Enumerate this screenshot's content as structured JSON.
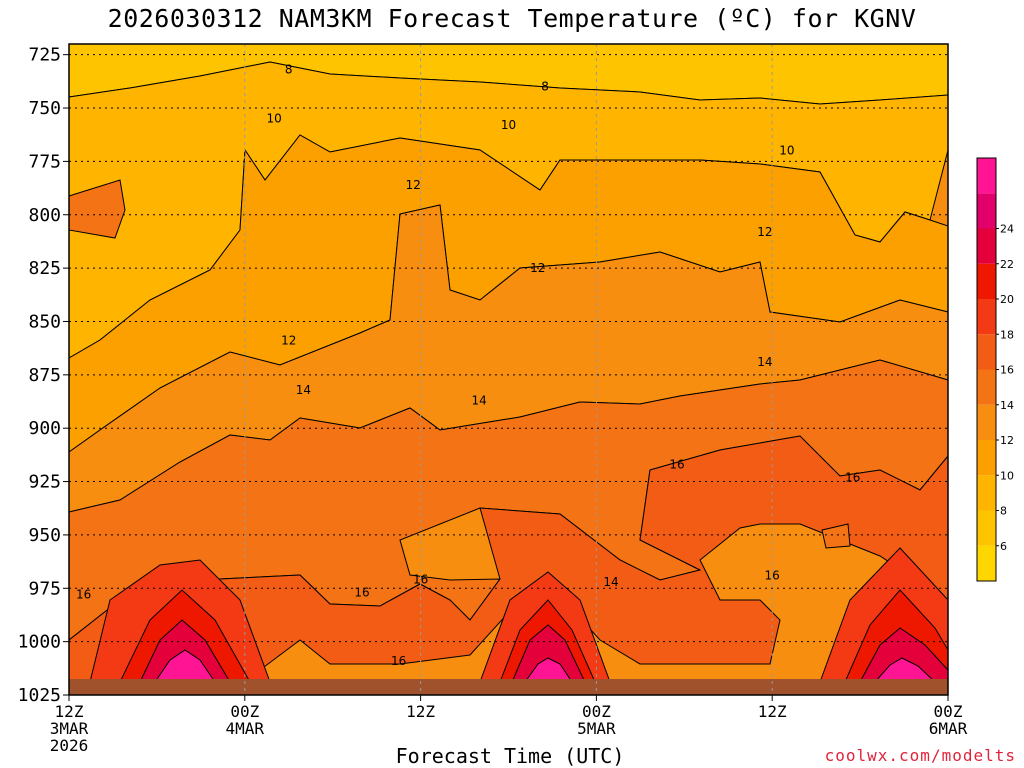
{
  "title": "2026030312 NAM3KM Forecast Temperature (ºC) for KGNV",
  "credit": "coolwx.com/modelts",
  "chart_data": {
    "type": "heatmap",
    "title": "2026030312 NAM3KM Forecast Temperature (ºC) for KGNV",
    "xlabel": "Forecast Time (UTC)",
    "ylabel": "",
    "y_axis": {
      "ticks": [
        725,
        750,
        775,
        800,
        825,
        850,
        875,
        900,
        925,
        950,
        975,
        1000,
        1025
      ],
      "inverted": true,
      "range": [
        720,
        1025
      ]
    },
    "x_axis": {
      "range_hours": [
        0,
        60
      ],
      "ticks": [
        {
          "h": 0,
          "lines": [
            "12Z",
            "3MAR",
            "2026"
          ]
        },
        {
          "h": 12,
          "lines": [
            "00Z",
            "4MAR"
          ]
        },
        {
          "h": 24,
          "lines": [
            "12Z"
          ]
        },
        {
          "h": 36,
          "lines": [
            "00Z",
            "5MAR"
          ]
        },
        {
          "h": 48,
          "lines": [
            "12Z"
          ]
        },
        {
          "h": 60,
          "lines": [
            "00Z",
            "6MAR"
          ]
        }
      ]
    },
    "grid": true,
    "colorbar": {
      "levels": [
        6,
        8,
        10,
        12,
        14,
        16,
        18,
        20,
        22,
        24
      ],
      "colors": [
        "#ffd700",
        "#ffc400",
        "#ffb400",
        "#fca000",
        "#f78e10",
        "#f47314",
        "#f35c14",
        "#f43a14",
        "#ee1800",
        "#e4003a",
        "#e2006a",
        "#ff1493"
      ],
      "placement": "right"
    },
    "contour_labels": [
      {
        "h": 15.0,
        "p": 732,
        "text": "8"
      },
      {
        "h": 32.5,
        "p": 740,
        "text": "8"
      },
      {
        "h": 14.0,
        "p": 755,
        "text": "10"
      },
      {
        "h": 30.0,
        "p": 758,
        "text": "10"
      },
      {
        "h": 49.0,
        "p": 770,
        "text": "10"
      },
      {
        "h": 23.5,
        "p": 786,
        "text": "12"
      },
      {
        "h": 32.0,
        "p": 825,
        "text": "12"
      },
      {
        "h": 47.5,
        "p": 808,
        "text": "12"
      },
      {
        "h": 15.0,
        "p": 859,
        "text": "12"
      },
      {
        "h": 16.0,
        "p": 882,
        "text": "14"
      },
      {
        "h": 28.0,
        "p": 887,
        "text": "14"
      },
      {
        "h": 47.5,
        "p": 869,
        "text": "14"
      },
      {
        "h": 41.5,
        "p": 917,
        "text": "16"
      },
      {
        "h": 53.5,
        "p": 923,
        "text": "16"
      },
      {
        "h": 1.0,
        "p": 978,
        "text": "16"
      },
      {
        "h": 20.0,
        "p": 977,
        "text": "16"
      },
      {
        "h": 24.0,
        "p": 971,
        "text": "16"
      },
      {
        "h": 22.5,
        "p": 1009,
        "text": "16"
      },
      {
        "h": 37.0,
        "p": 972,
        "text": "14"
      },
      {
        "h": 48.0,
        "p": 969,
        "text": "16"
      }
    ]
  }
}
